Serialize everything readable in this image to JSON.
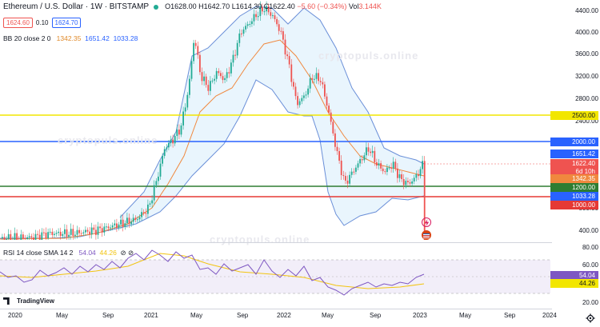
{
  "header": {
    "symbol": "Ethereum / U.S. Dollar · 1W · BITSTAMP",
    "ohlc_open": "O1628.00",
    "ohlc_high": "H1642.70",
    "ohlc_low": "L1614.30",
    "ohlc_close": "C1622.40",
    "change": "−5.60 (−0.34%)",
    "volume_label": "Vol",
    "volume": "3.144K"
  },
  "prices": {
    "sell": "1624.60",
    "spread": "0.10",
    "buy": "1624.70"
  },
  "bb_legend": {
    "name": "BB 20 close 2 0",
    "basis": "1342.35",
    "upper": "1651.42",
    "lower": "1033.28"
  },
  "rsi_legend": {
    "name": "RSI 14 close SMA 14 2",
    "rsi": "54.04",
    "sma": "44.26",
    "icons": "⊘ ⊘"
  },
  "watermark": {
    "top": "cryptopuls.online",
    "bottom": "cryptopuls.online",
    "middle": "cryptopuls.online"
  },
  "logo": {
    "text": "TradingView"
  },
  "y_axis_price": [
    "4400.00",
    "4000.00",
    "3600.00",
    "3200.00",
    "2800.00",
    "2400.00",
    "2000.00",
    "1600.00",
    "1200.00",
    "800.00",
    "400.00"
  ],
  "y_axis_rsi": [
    "80.00",
    "60.00",
    "40.00",
    "20.00"
  ],
  "x_axis": [
    "2020",
    "May",
    "Sep",
    "2021",
    "May",
    "Sep",
    "2022",
    "May",
    "Sep",
    "2023",
    "May",
    "Sep",
    "2024"
  ],
  "price_labels": [
    {
      "text": "2500.00",
      "bg": "#f2e600",
      "fg": "#131722"
    },
    {
      "text": "2000.00",
      "bg": "#2962ff",
      "fg": "#ffffff"
    },
    {
      "text": "1651.42",
      "bg": "#2962ff",
      "fg": "#ffffff"
    },
    {
      "text": "1622.40",
      "bg": "#ef5350",
      "fg": "#ffffff"
    },
    {
      "text": "6d 10h",
      "bg": "#ef5350",
      "fg": "#ffffff"
    },
    {
      "text": "1342.35",
      "bg": "#f0883e",
      "fg": "#ffffff"
    },
    {
      "text": "1200.00",
      "bg": "#2e7d32",
      "fg": "#ffffff"
    },
    {
      "text": "1033.28",
      "bg": "#2962ff",
      "fg": "#ffffff"
    },
    {
      "text": "1000.00",
      "bg": "#e53935",
      "fg": "#ffffff"
    }
  ],
  "rsi_labels": [
    {
      "text": "54.04",
      "bg": "#7e57c2",
      "fg": "#ffffff"
    },
    {
      "text": "44.26",
      "bg": "#f2e600",
      "fg": "#131722"
    }
  ],
  "colors": {
    "up": "#22ab94",
    "down": "#ef5350",
    "bb": "#2962ff",
    "basis": "#f0883e",
    "rsi": "#7e57c2"
  }
}
